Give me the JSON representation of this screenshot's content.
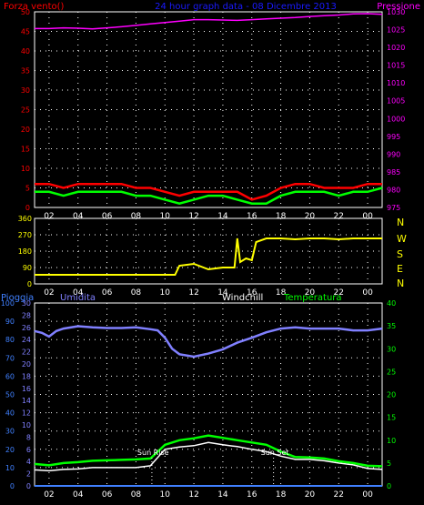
{
  "header": {
    "left_label": "Forza vento()",
    "center_label": "24 hour graph data - 08 Dicembre 2013",
    "right_label": "Pressione"
  },
  "colors": {
    "background": "#000000",
    "frame": "#ffffff",
    "grid": "#ffffff",
    "wind_speed": "#ff0000",
    "wind_gust_avg": "#00ff00",
    "pressure": "#ff00ff",
    "title": "#1a1aff",
    "direction": "#ffff00",
    "rain": "#4080ff",
    "humidity": "#8080ff",
    "windchill": "#ffffff",
    "temperature": "#00ff00",
    "sun_marker": "#ffffff"
  },
  "x_ticks": [
    "02",
    "04",
    "06",
    "08",
    "10",
    "12",
    "14",
    "16",
    "18",
    "20",
    "22",
    "00"
  ],
  "chart_data": [
    {
      "type": "line",
      "id": "wind-pressure",
      "x_range": [
        0,
        24
      ],
      "ylim_left": [
        0,
        50
      ],
      "yticks_left": [
        0,
        5,
        10,
        15,
        20,
        25,
        30,
        35,
        40,
        45,
        50
      ],
      "ylim_right": [
        975,
        1030
      ],
      "yticks_right": [
        975,
        980,
        985,
        990,
        995,
        1000,
        1005,
        1010,
        1015,
        1020,
        1025,
        1030
      ],
      "series": [
        {
          "name": "Forza vento()",
          "axis": "left",
          "x": [
            0,
            1,
            2,
            3,
            4,
            5,
            6,
            7,
            8,
            9,
            10,
            11,
            12,
            13,
            14,
            15,
            16,
            17,
            18,
            19,
            20,
            21,
            22,
            23,
            24
          ],
          "values": [
            6,
            6,
            5,
            6,
            6,
            6,
            6,
            5,
            5,
            4,
            3,
            4,
            4,
            4,
            4,
            2,
            3,
            5,
            6,
            6,
            5,
            5,
            5,
            6,
            6
          ]
        },
        {
          "name": "",
          "axis": "left",
          "x": [
            0,
            1,
            2,
            3,
            4,
            5,
            6,
            7,
            8,
            9,
            10,
            11,
            12,
            13,
            14,
            15,
            16,
            17,
            18,
            19,
            20,
            21,
            22,
            23,
            24
          ],
          "values": [
            4,
            4,
            3,
            4,
            4,
            4,
            4,
            3,
            3,
            2,
            1,
            2,
            3,
            3,
            2,
            1,
            1,
            3,
            4,
            4,
            4,
            3,
            4,
            4,
            5
          ]
        },
        {
          "name": "Pressione",
          "axis": "right",
          "x": [
            0,
            1,
            2,
            3,
            4,
            5,
            6,
            7,
            8,
            9,
            10,
            11,
            12,
            13,
            14,
            15,
            16,
            17,
            18,
            19,
            20,
            21,
            22,
            23,
            24
          ],
          "values": [
            1025.3,
            1025.3,
            1025.5,
            1025.4,
            1025.2,
            1025.5,
            1025.8,
            1026.2,
            1026.6,
            1027.0,
            1027.4,
            1027.8,
            1027.8,
            1027.7,
            1027.6,
            1027.8,
            1028.0,
            1028.2,
            1028.4,
            1028.7,
            1028.9,
            1029.1,
            1029.4,
            1029.5,
            1029.3
          ]
        }
      ]
    },
    {
      "type": "line",
      "id": "wind-direction",
      "x_range": [
        0,
        24
      ],
      "ylim": [
        0,
        360
      ],
      "yticks": [
        0,
        90,
        180,
        270,
        360
      ],
      "compass_labels": [
        "N",
        "W",
        "S",
        "E",
        "N"
      ],
      "series": [
        {
          "name": "",
          "x": [
            0,
            2,
            4,
            6,
            8,
            9.7,
            10,
            11,
            12,
            13,
            13.8,
            14.0,
            14.2,
            14.6,
            15.0,
            15.3,
            16,
            17,
            18,
            19,
            20,
            21,
            22,
            23,
            24
          ],
          "values": [
            50,
            50,
            50,
            50,
            50,
            50,
            100,
            110,
            80,
            90,
            90,
            250,
            120,
            140,
            130,
            230,
            250,
            250,
            245,
            250,
            250,
            245,
            250,
            250,
            250
          ]
        }
      ]
    },
    {
      "type": "line",
      "id": "humidity-temperature",
      "x_range": [
        0,
        24
      ],
      "rain_ylim": [
        0,
        100
      ],
      "rain_yticks": [
        0,
        10,
        20,
        30,
        40,
        50,
        60,
        70,
        80,
        90,
        100
      ],
      "humidity_ylim": [
        0,
        30
      ],
      "humidity_yticks": [
        0,
        2,
        4,
        6,
        8,
        10,
        12,
        14,
        16,
        18,
        20,
        22,
        24,
        26,
        28,
        30
      ],
      "temperature_ylim": [
        0,
        40
      ],
      "temperature_yticks": [
        0,
        5,
        10,
        15,
        20,
        25,
        30,
        35,
        40
      ],
      "labels": {
        "rain": "Pioggia",
        "humidity": "Umidita",
        "windchill": "Windchill",
        "temperature": "Temperatura"
      },
      "annotations": [
        {
          "label": "Sun Rise",
          "x": 8.1
        },
        {
          "label": "Sun Set",
          "x": 16.5
        }
      ],
      "series": [
        {
          "name": "Pioggia",
          "axis": "rain",
          "x": [
            0,
            24
          ],
          "values": [
            0,
            0
          ]
        },
        {
          "name": "Umidita",
          "axis": "humidity",
          "x": [
            0,
            0.5,
            1,
            1.5,
            2,
            3,
            4,
            5,
            6,
            7,
            8,
            8.5,
            9,
            9.5,
            10,
            11,
            12,
            13,
            14,
            15,
            16,
            17,
            18,
            19,
            20,
            21,
            22,
            23,
            24
          ],
          "values": [
            25.4,
            25.1,
            24.5,
            25.4,
            25.8,
            26.2,
            26.0,
            25.9,
            25.9,
            26.0,
            25.7,
            25.5,
            24.3,
            22.5,
            21.6,
            21.2,
            21.7,
            22.4,
            23.5,
            24.3,
            25.2,
            25.8,
            26.0,
            25.8,
            25.8,
            25.8,
            25.5,
            25.5,
            25.8
          ]
        },
        {
          "name": "Windchill",
          "axis": "temperature",
          "x": [
            0,
            1,
            2,
            3,
            4,
            5,
            6,
            7,
            8,
            9,
            10,
            11,
            12,
            13,
            14,
            15,
            16,
            17,
            18,
            19,
            20,
            21,
            22,
            23,
            24
          ],
          "values": [
            3.5,
            3.3,
            3.6,
            3.7,
            4.0,
            4.0,
            4.0,
            4.0,
            4.4,
            8.0,
            8.5,
            8.8,
            9.5,
            9.0,
            8.6,
            8.0,
            7.5,
            6.5,
            5.8,
            5.8,
            5.5,
            5.0,
            4.6,
            3.8,
            3.6
          ]
        },
        {
          "name": "Temperatura",
          "axis": "temperature",
          "x": [
            0,
            1,
            2,
            3,
            4,
            5,
            6,
            7,
            8,
            9,
            10,
            11,
            12,
            13,
            14,
            15,
            16,
            17,
            18,
            19,
            20,
            21,
            22,
            23,
            24
          ],
          "values": [
            4.8,
            4.5,
            5.0,
            5.2,
            5.5,
            5.6,
            5.7,
            5.8,
            6.0,
            9.0,
            10.0,
            10.4,
            11.0,
            10.5,
            10.0,
            9.5,
            9.0,
            7.5,
            6.3,
            6.2,
            6.0,
            5.4,
            5.0,
            4.4,
            4.3
          ]
        }
      ]
    }
  ]
}
